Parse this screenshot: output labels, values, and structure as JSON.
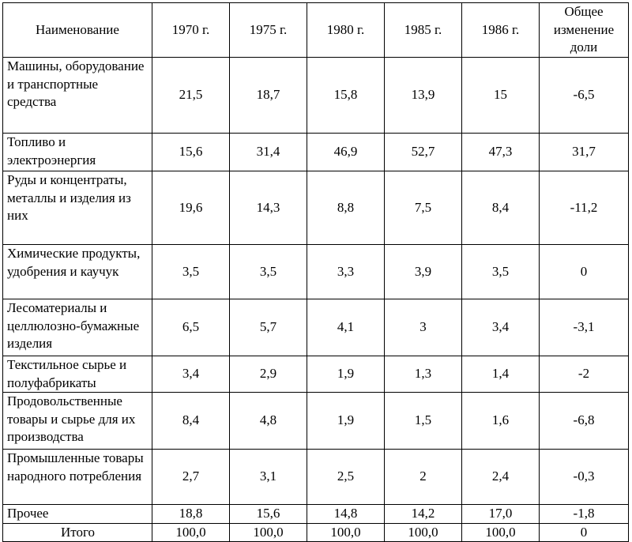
{
  "table": {
    "headers": [
      "Наименование",
      "1970 г.",
      "1975 г.",
      "1980 г.",
      "1985 г.",
      "1986 г.",
      "Общее изменение доли"
    ],
    "rows": [
      {
        "name": "Машины, оборудование и транспортные средства",
        "values": [
          "21,5",
          "18,7",
          "15,8",
          "13,9",
          "15",
          "-6,5"
        ]
      },
      {
        "name": "Топливо и электроэнергия",
        "values": [
          "15,6",
          "31,4",
          "46,9",
          "52,7",
          "47,3",
          "31,7"
        ]
      },
      {
        "name": "Руды и концентраты, металлы и изделия из них",
        "values": [
          "19,6",
          "14,3",
          "8,8",
          "7,5",
          "8,4",
          "-11,2"
        ]
      },
      {
        "name": "Химические продукты, удобрения и каучук",
        "values": [
          "3,5",
          "3,5",
          "3,3",
          "3,9",
          "3,5",
          "0"
        ]
      },
      {
        "name": "Лесоматериалы и целлюлозно-бумажные изделия",
        "values": [
          "6,5",
          "5,7",
          "4,1",
          "3",
          "3,4",
          "-3,1"
        ]
      },
      {
        "name": "Текстильное сырье и полуфабрикаты",
        "values": [
          "3,4",
          "2,9",
          "1,9",
          "1,3",
          "1,4",
          "-2"
        ]
      },
      {
        "name": "Продовольственные товары и сырье для их производства",
        "values": [
          "8,4",
          "4,8",
          "1,9",
          "1,5",
          "1,6",
          "-6,8"
        ]
      },
      {
        "name": "Промышленные товары народного потребления",
        "values": [
          "2,7",
          "3,1",
          "2,5",
          "2",
          "2,4",
          "-0,3"
        ]
      },
      {
        "name": "Прочее",
        "values": [
          "18,8",
          "15,6",
          "14,8",
          "14,2",
          "17,0",
          "-1,8"
        ]
      },
      {
        "name": "Итого",
        "values": [
          "100,0",
          "100,0",
          "100,0",
          "100,0",
          "100,0",
          "0"
        ]
      }
    ]
  }
}
